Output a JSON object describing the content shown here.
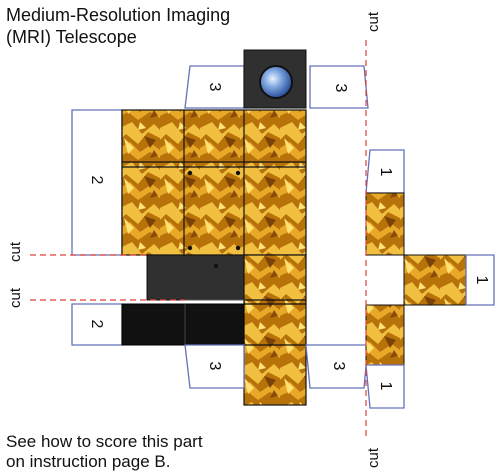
{
  "title": {
    "line1": "Medium-Resolution Imaging",
    "line2": "(MRI) Telescope"
  },
  "note": {
    "line1": "See how to score this part",
    "line2": "on instruction page B."
  },
  "cut_labels": {
    "top_right": "cut",
    "left_upper": "cut",
    "left_lower": "cut",
    "bottom_right": "cut"
  },
  "tabs": {
    "top_left": "3",
    "top_right": "3",
    "left_upper": "2",
    "left_lower": "2",
    "bottom_left": "3",
    "bottom_right": "3",
    "right_column_top": "1",
    "right_column_bottom": "1",
    "right_arm": "1"
  },
  "colors": {
    "outline": "#6470b8",
    "cut_line": "#e0403a",
    "foil_base": "#b8720a",
    "foil_light": "#f2c040",
    "dark_panel": "#303030",
    "black_panel": "#111111"
  }
}
